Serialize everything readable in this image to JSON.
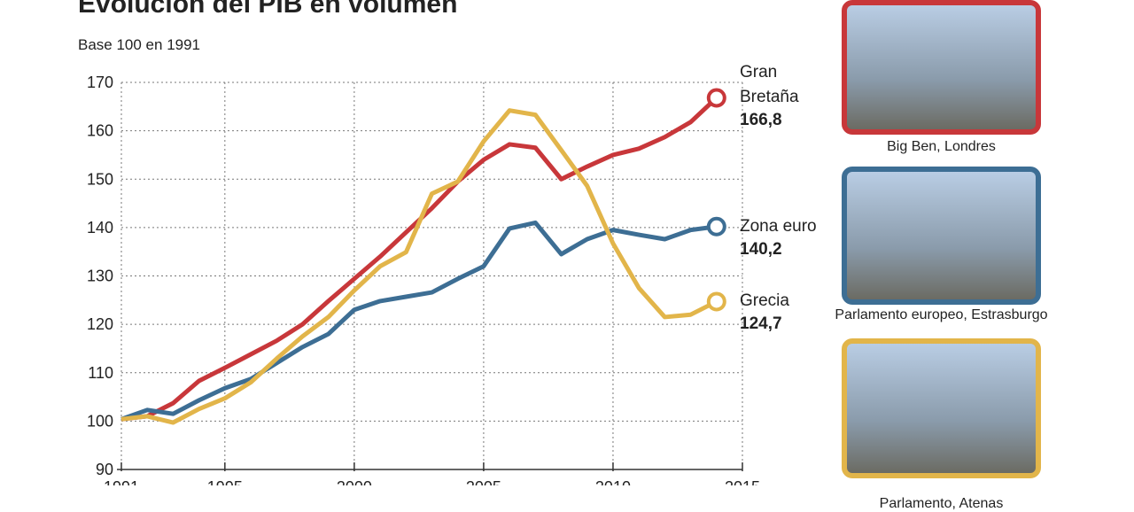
{
  "chart_data": {
    "type": "line",
    "title": "Evolución del PIB en volumen",
    "subtitle": "Base 100 en 1991",
    "x": [
      1991,
      1992,
      1993,
      1994,
      1995,
      1996,
      1997,
      1998,
      1999,
      2000,
      2001,
      2002,
      2003,
      2004,
      2005,
      2006,
      2007,
      2008,
      2009,
      2010,
      2011,
      2012,
      2013,
      2014
    ],
    "xlim": [
      1991,
      2015
    ],
    "xticks": [
      1991,
      1995,
      2000,
      2005,
      2010,
      2015
    ],
    "ylim": [
      90,
      170
    ],
    "yticks": [
      90,
      100,
      110,
      120,
      130,
      140,
      150,
      160,
      170
    ],
    "grid": true,
    "series": [
      {
        "name": "Gran Bretaña",
        "color": "#c8373a",
        "values": [
          100.4,
          101,
          103.7,
          108.3,
          111,
          113.8,
          116.6,
          120,
          124.8,
          129.4,
          134,
          139,
          144,
          149.5,
          154,
          157.2,
          156.5,
          150,
          152.6,
          155,
          156.3,
          158.7,
          161.8,
          166.8
        ],
        "value_labels": [
          null,
          null,
          null,
          null,
          null,
          null,
          null,
          null,
          null,
          null,
          null,
          null,
          null,
          null,
          null,
          null,
          null,
          null,
          null,
          null,
          null,
          null,
          null,
          "166,8"
        ]
      },
      {
        "name": "Zona euro",
        "color": "#3d6e94",
        "values": [
          100.4,
          102.3,
          101.5,
          104.3,
          106.8,
          108.7,
          112,
          115.3,
          118,
          123,
          124.8,
          125.7,
          126.6,
          129.4,
          132,
          139.8,
          141,
          134.5,
          137.6,
          139.5,
          138.5,
          137.6,
          139.5,
          140.2
        ],
        "value_labels": [
          null,
          null,
          null,
          null,
          null,
          null,
          null,
          null,
          null,
          null,
          null,
          null,
          null,
          null,
          null,
          null,
          null,
          null,
          null,
          null,
          null,
          null,
          null,
          "140,2"
        ]
      },
      {
        "name": "Grecia",
        "color": "#e2b54a",
        "values": [
          100.4,
          101,
          99.7,
          102.5,
          104.7,
          108,
          112.9,
          117.5,
          121.5,
          127,
          132,
          134.9,
          147,
          149.5,
          157.8,
          164.2,
          163.3,
          156,
          148.6,
          136.7,
          127.5,
          121.5,
          122,
          124.7
        ],
        "value_labels": [
          null,
          null,
          null,
          null,
          null,
          null,
          null,
          null,
          null,
          null,
          null,
          null,
          null,
          null,
          null,
          null,
          null,
          null,
          null,
          null,
          null,
          null,
          null,
          "124,7"
        ]
      }
    ]
  },
  "photos": [
    {
      "caption": "Big Ben, Londres",
      "color": "#c8373a"
    },
    {
      "caption": "Parlamento europeo, Estrasburgo",
      "color": "#3d6e94"
    },
    {
      "caption": "Parlamento, Atenas",
      "color": "#e2b54a"
    }
  ]
}
